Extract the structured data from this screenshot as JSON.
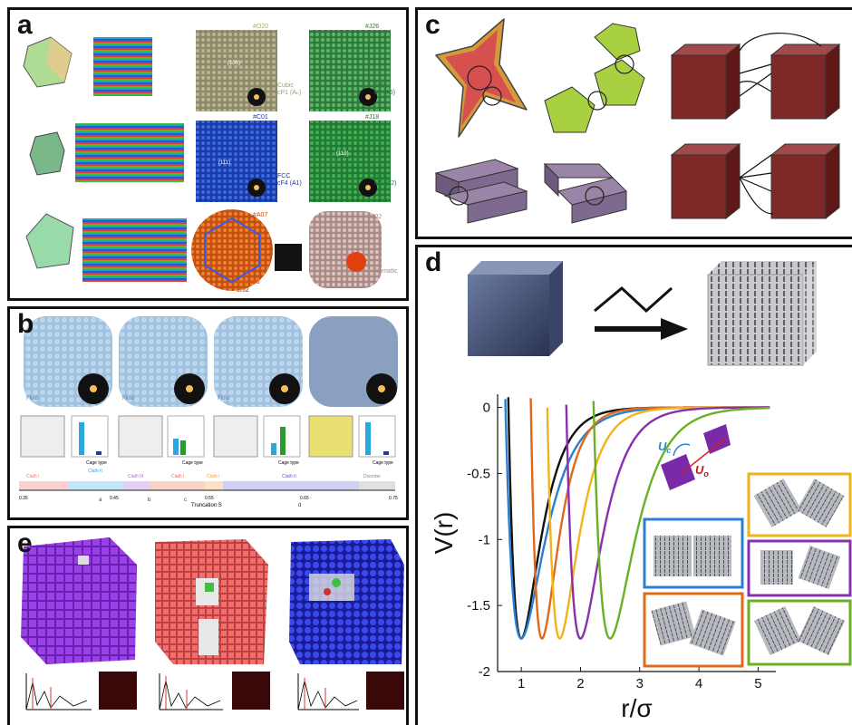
{
  "panels": {
    "a": {
      "label": "a",
      "structures": [
        {
          "tag": "#O20",
          "name": "Cubic",
          "symbol": "cP1 (Aₕ)"
        },
        {
          "tag": "#J26",
          "name": "β-Sn",
          "symbol": "tI4 (A5)"
        },
        {
          "tag": "#C01",
          "name": "FCC",
          "symbol": "cF4 (A1)"
        },
        {
          "tag": "#J18",
          "name": "BCC",
          "symbol": "cI2 (A2)"
        },
        {
          "tag": "#A07",
          "name": "γ-Brass",
          "symbol": "cI52"
        },
        {
          "tag": "#J02",
          "name": "Nematic",
          "symbol": ""
        }
      ],
      "miller": [
        "(100)",
        "(111)",
        "(110)"
      ]
    },
    "b": {
      "label": "b",
      "fluid": "Fluid",
      "cage_ylabel": "Ratio",
      "cage_xlabel": "Cage type",
      "cage_ticks": [
        "4",
        "6",
        "8",
        "D"
      ],
      "phases": [
        {
          "name": "Clath I",
          "code": "(A081)",
          "color": "#f08080"
        },
        {
          "name": "Clath II",
          "code": "(A0B1)",
          "color": "#4fb7e6"
        },
        {
          "name": "Clath III",
          "code": "(A0B1C1)",
          "color": "#a070d0"
        },
        {
          "name": "Clath I",
          "code": "(A0B1)",
          "color": "#f07050"
        },
        {
          "name": "Clath I",
          "code": "(A1B1)",
          "color": "#f0a040"
        },
        {
          "name": "Clath II",
          "code": "(A1D4)",
          "color": "#5a5ad0"
        },
        {
          "name": "Disorder",
          "code": "",
          "color": "#aaaaaa"
        }
      ],
      "axis_ticks": [
        "0.35",
        "0.45",
        "0.55",
        "0.65",
        "0.75"
      ],
      "axis_label": "Truncation S",
      "markers": [
        "a",
        "b",
        "c",
        "d"
      ]
    },
    "c": {
      "label": "c"
    },
    "d": {
      "label": "d"
    },
    "e": {
      "label": "e"
    }
  },
  "chart_data": {
    "type": "line",
    "xlabel": "r/σ",
    "ylabel": "V(r)",
    "xlim": [
      0.6,
      5.3
    ],
    "ylim": [
      -2,
      0.1
    ],
    "xticks": [
      "1",
      "2",
      "3",
      "4",
      "5"
    ],
    "yticks": [
      "0",
      "-0.5",
      "-1",
      "-1.5",
      "-2"
    ],
    "series": [
      {
        "color": "#111111",
        "min_x": 1.0,
        "min_y": -1.75
      },
      {
        "color": "#2a7fd4",
        "min_x": 1.0,
        "min_y": -1.75
      },
      {
        "color": "#e06a1a",
        "min_x": 1.35,
        "min_y": -1.75
      },
      {
        "color": "#f2b21a",
        "min_x": 1.65,
        "min_y": -1.75
      },
      {
        "color": "#8a2fb0",
        "min_x": 2.0,
        "min_y": -1.75
      },
      {
        "color": "#6ab024",
        "min_x": 2.5,
        "min_y": -1.75
      }
    ],
    "inset_labels": {
      "uc": "U",
      "uc_sub": "c",
      "uo": "U",
      "uo_sub": "o"
    }
  }
}
